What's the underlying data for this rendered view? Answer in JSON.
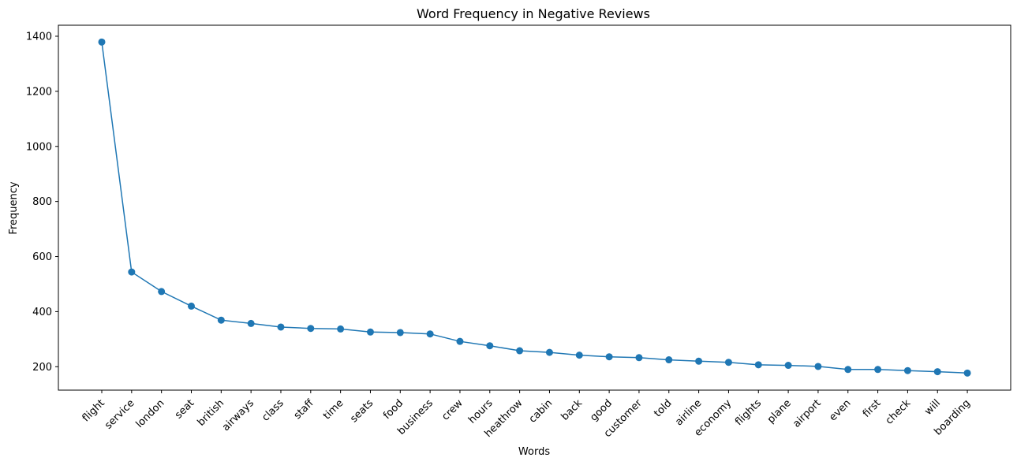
{
  "chart_data": {
    "type": "line",
    "title": "Word Frequency in Negative Reviews",
    "xlabel": "Words",
    "ylabel": "Frequency",
    "ylim": [
      115,
      1440
    ],
    "yticks": [
      200,
      400,
      600,
      800,
      1000,
      1200,
      1400
    ],
    "grid": false,
    "legend": "none",
    "categories": [
      "flight",
      "service",
      "london",
      "seat",
      "british",
      "airways",
      "class",
      "staff",
      "time",
      "seats",
      "food",
      "business",
      "crew",
      "hours",
      "heathrow",
      "cabin",
      "back",
      "good",
      "customer",
      "told",
      "airline",
      "economy",
      "flights",
      "plane",
      "airport",
      "even",
      "first",
      "check",
      "will",
      "boarding"
    ],
    "series": [
      {
        "color": "#1f77b4",
        "marker": "circle",
        "values": [
          1379,
          544,
          473,
          420,
          369,
          357,
          344,
          339,
          337,
          326,
          324,
          319,
          292,
          276,
          258,
          252,
          242,
          236,
          233,
          225,
          220,
          216,
          207,
          205,
          201,
          190,
          190,
          186,
          182,
          177
        ]
      }
    ]
  }
}
